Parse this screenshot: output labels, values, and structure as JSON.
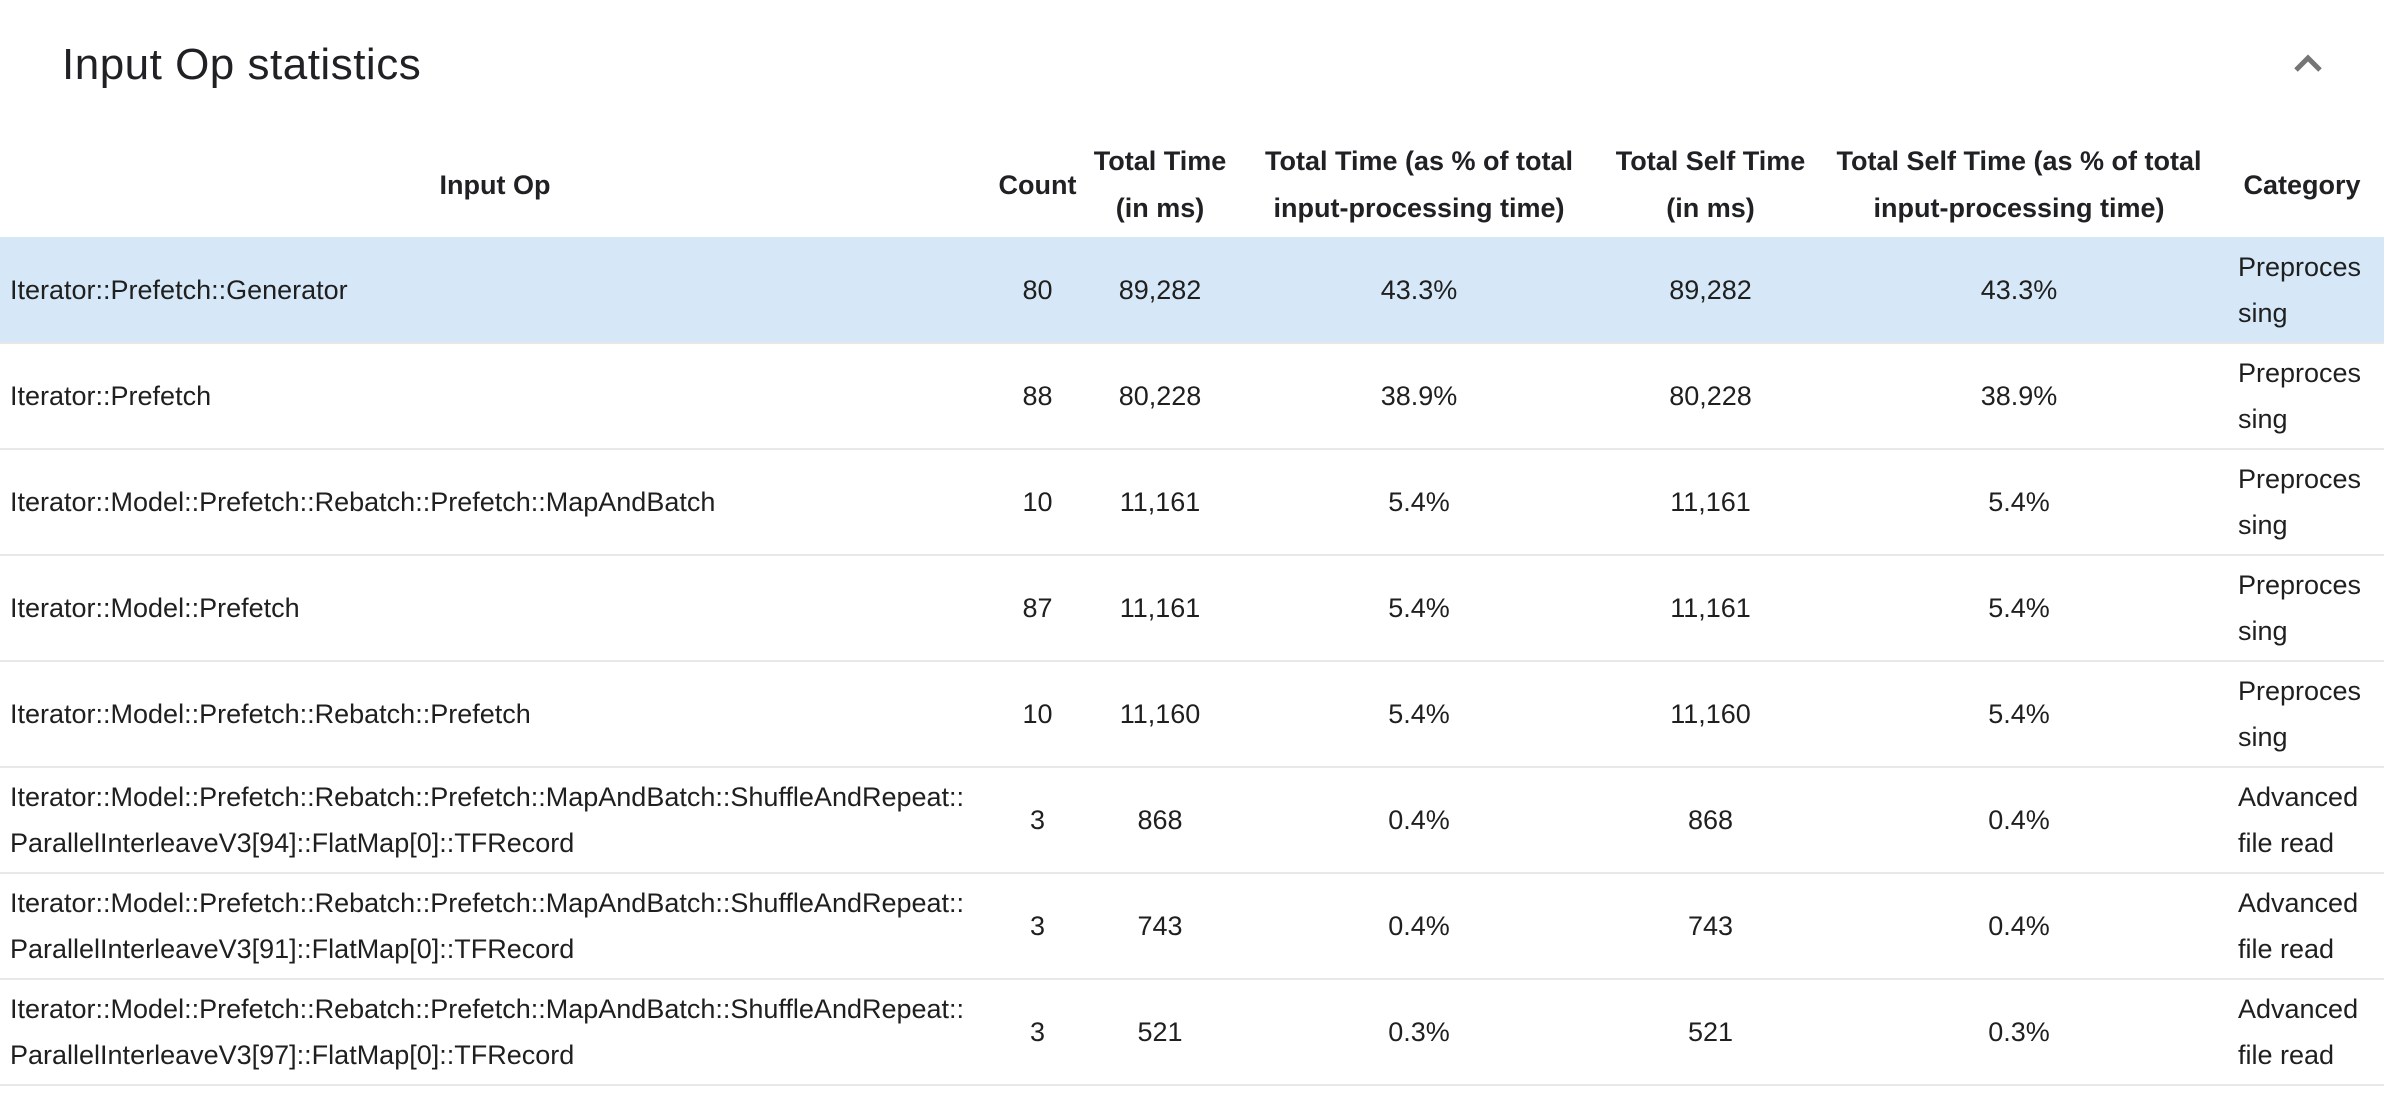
{
  "panel": {
    "title": "Input Op statistics",
    "collapse_icon": "chevron-up"
  },
  "colors": {
    "selected_row_background": "#d6e8f8",
    "row_separator": "#e8e8e8",
    "chevron": "#757575",
    "text": "#1f1f1f"
  },
  "table": {
    "columns": [
      {
        "key": "input_op",
        "label": "Input Op"
      },
      {
        "key": "count",
        "label": "Count"
      },
      {
        "key": "total_time_ms",
        "label": "Total Time (in ms)"
      },
      {
        "key": "total_time_pct",
        "label": "Total Time (as % of total input-processing time)"
      },
      {
        "key": "total_self_time_ms",
        "label": "Total Self Time (in ms)"
      },
      {
        "key": "total_self_time_pct",
        "label": "Total Self Time (as % of total input-processing time)"
      },
      {
        "key": "category",
        "label": "Category"
      }
    ],
    "rows": [
      {
        "input_op": "Iterator::Prefetch::Generator",
        "count": "80",
        "total_time_ms": "89,282",
        "total_time_pct": "43.3%",
        "total_self_time_ms": "89,282",
        "total_self_time_pct": "43.3%",
        "category": "Preprocessing",
        "selected": true
      },
      {
        "input_op": "Iterator::Prefetch",
        "count": "88",
        "total_time_ms": "80,228",
        "total_time_pct": "38.9%",
        "total_self_time_ms": "80,228",
        "total_self_time_pct": "38.9%",
        "category": "Preprocessing",
        "selected": false
      },
      {
        "input_op": "Iterator::Model::Prefetch::Rebatch::Prefetch::MapAndBatch",
        "count": "10",
        "total_time_ms": "11,161",
        "total_time_pct": "5.4%",
        "total_self_time_ms": "11,161",
        "total_self_time_pct": "5.4%",
        "category": "Preprocessing",
        "selected": false
      },
      {
        "input_op": "Iterator::Model::Prefetch",
        "count": "87",
        "total_time_ms": "11,161",
        "total_time_pct": "5.4%",
        "total_self_time_ms": "11,161",
        "total_self_time_pct": "5.4%",
        "category": "Preprocessing",
        "selected": false
      },
      {
        "input_op": "Iterator::Model::Prefetch::Rebatch::Prefetch",
        "count": "10",
        "total_time_ms": "11,160",
        "total_time_pct": "5.4%",
        "total_self_time_ms": "11,160",
        "total_self_time_pct": "5.4%",
        "category": "Preprocessing",
        "selected": false
      },
      {
        "input_op": "Iterator::Model::Prefetch::Rebatch::Prefetch::MapAndBatch::ShuffleAndRepeat::ParallelInterleaveV3[94]::FlatMap[0]::TFRecord",
        "count": "3",
        "total_time_ms": "868",
        "total_time_pct": "0.4%",
        "total_self_time_ms": "868",
        "total_self_time_pct": "0.4%",
        "category": "Advanced file read",
        "selected": false
      },
      {
        "input_op": "Iterator::Model::Prefetch::Rebatch::Prefetch::MapAndBatch::ShuffleAndRepeat::ParallelInterleaveV3[91]::FlatMap[0]::TFRecord",
        "count": "3",
        "total_time_ms": "743",
        "total_time_pct": "0.4%",
        "total_self_time_ms": "743",
        "total_self_time_pct": "0.4%",
        "category": "Advanced file read",
        "selected": false
      },
      {
        "input_op": "Iterator::Model::Prefetch::Rebatch::Prefetch::MapAndBatch::ShuffleAndRepeat::ParallelInterleaveV3[97]::FlatMap[0]::TFRecord",
        "count": "3",
        "total_time_ms": "521",
        "total_time_pct": "0.3%",
        "total_self_time_ms": "521",
        "total_self_time_pct": "0.3%",
        "category": "Advanced file read",
        "selected": false
      }
    ]
  }
}
